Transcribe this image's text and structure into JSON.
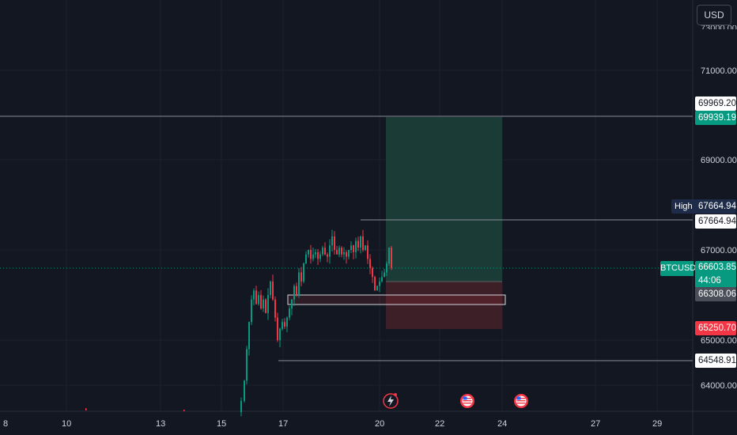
{
  "toolbar": {
    "currency": "USD"
  },
  "price_scale": {
    "ticks": [
      "71000.00",
      "69000.00",
      "67000.00",
      "65000.00",
      "64000.00"
    ],
    "clipped_top_tick": "73000.00"
  },
  "time_scale": {
    "ticks": [
      "8",
      "10",
      "13",
      "15",
      "17",
      "20",
      "22",
      "24",
      "27",
      "29"
    ]
  },
  "tags": {
    "line_level": "69969.20",
    "target": "69939.19",
    "high_label": "High",
    "high_value": "67664.94",
    "high_line": "67664.94",
    "symbol": "BTCUSD",
    "last_price": "66603.85",
    "countdown": "44:06",
    "entry": "66308.06",
    "stop": "65250.70",
    "low_line": "64548.91"
  },
  "colors": {
    "background": "#131722",
    "up": "#089981",
    "down": "#f23645",
    "profit_zone": "#1a3b36",
    "loss_zone": "#3d1f27"
  },
  "event_icons": [
    "lightning-icon",
    "us-flag-icon",
    "us-flag-icon"
  ]
}
